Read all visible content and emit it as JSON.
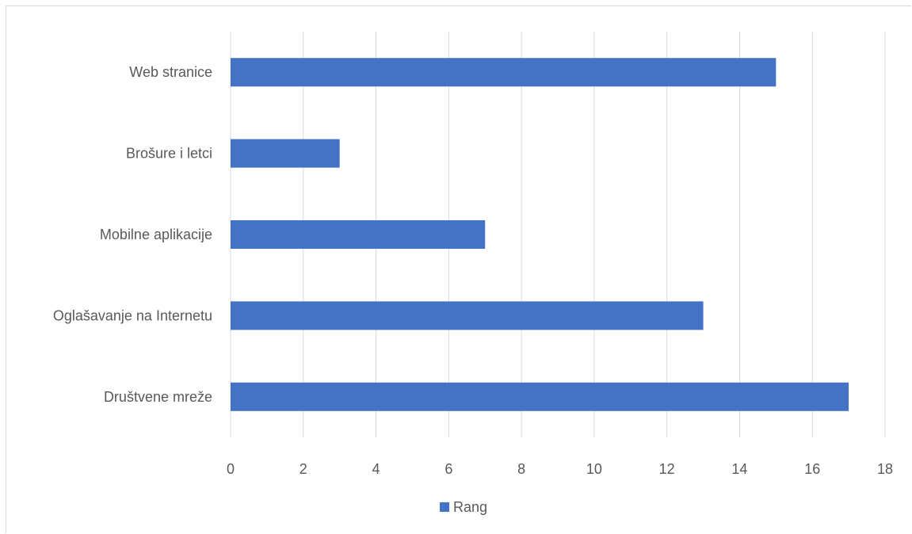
{
  "chart_data": {
    "type": "bar",
    "orientation": "horizontal",
    "categories": [
      "Web stranice",
      "Brošure i letci",
      "Mobilne aplikacije",
      "Oglašavanje na Internetu",
      "Društvene mreže"
    ],
    "series": [
      {
        "name": "Rang",
        "values": [
          15,
          3,
          7,
          13,
          17
        ],
        "color": "#4472c4"
      }
    ],
    "xlim": [
      0,
      18
    ],
    "xticks": [
      "0",
      "2",
      "4",
      "6",
      "8",
      "10",
      "12",
      "14",
      "16",
      "18"
    ],
    "grid": true,
    "legend": "bottom"
  }
}
